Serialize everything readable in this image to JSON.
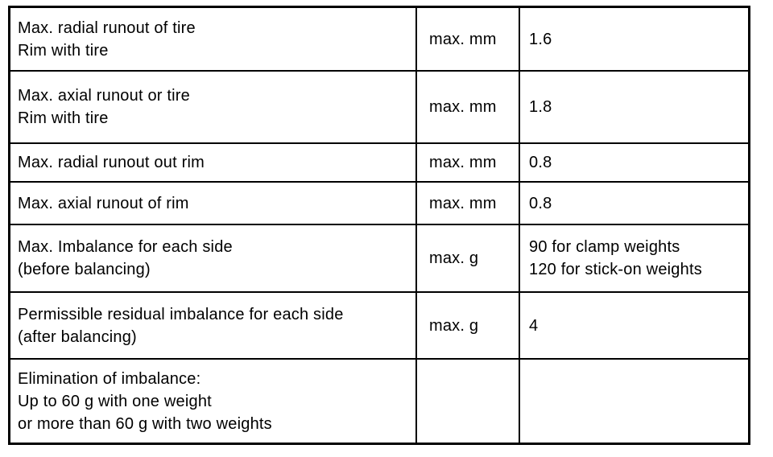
{
  "document": {
    "type": "specification-table",
    "colors": {
      "border": "#000000",
      "text": "#000000",
      "background": "#ffffff"
    },
    "rows": [
      {
        "label_lines": [
          "Max. radial runout of tire",
          "Rim with tire"
        ],
        "unit": "max. mm",
        "value_lines": [
          "1.6"
        ]
      },
      {
        "label_lines": [
          "Max. axial runout or tire",
          "Rim with tire"
        ],
        "unit": "max. mm",
        "value_lines": [
          "1.8"
        ]
      },
      {
        "label_lines": [
          "Max. radial runout out rim"
        ],
        "unit": "max. mm",
        "value_lines": [
          "0.8"
        ]
      },
      {
        "label_lines": [
          "Max. axial runout of rim"
        ],
        "unit": "max. mm",
        "value_lines": [
          "0.8"
        ]
      },
      {
        "label_lines": [
          "Max. Imbalance for each side",
          "(before balancing)"
        ],
        "unit": "max. g",
        "value_lines": [
          "90 for clamp weights",
          "120 for stick-on weights"
        ]
      },
      {
        "label_lines": [
          "Permissible residual imbalance for each side",
          "(after balancing)"
        ],
        "unit": "max. g",
        "value_lines": [
          "4"
        ]
      },
      {
        "label_lines": [
          "Elimination of imbalance:",
          "Up to 60 g with one weight",
          "or more than 60 g with two weights"
        ],
        "unit": "",
        "value_lines": []
      }
    ]
  }
}
